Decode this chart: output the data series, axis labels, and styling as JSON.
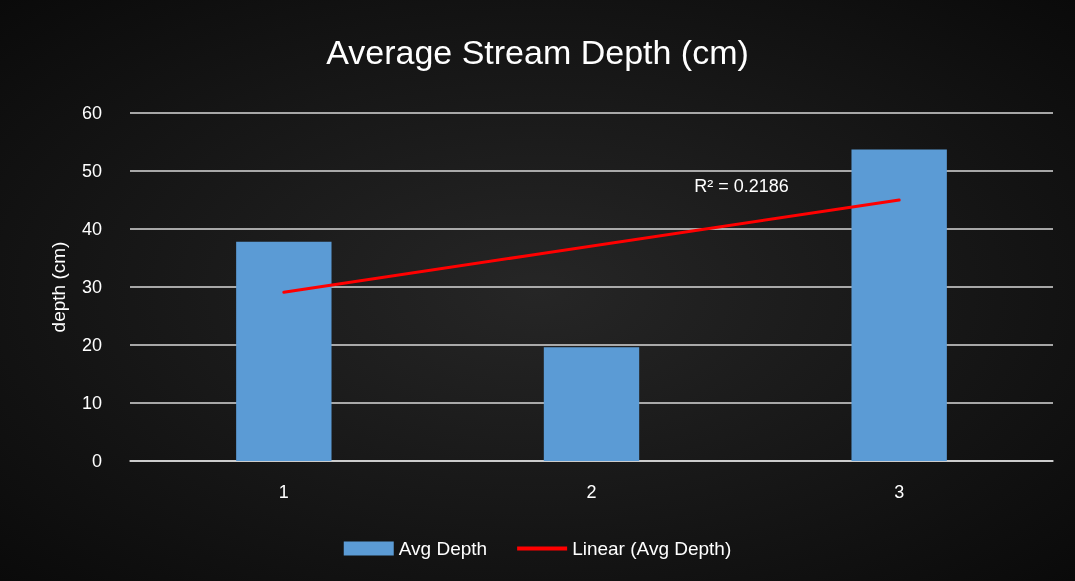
{
  "chart_data": {
    "type": "bar",
    "title": "Average Stream Depth (cm)",
    "ylabel": "depth (cm)",
    "categories": [
      "1",
      "2",
      "3"
    ],
    "series": [
      {
        "name": "Avg Depth",
        "color": "#5b9bd5",
        "values": [
          37.8,
          19.6,
          53.7
        ]
      },
      {
        "name": "Linear (Avg Depth)",
        "type": "line",
        "color": "#ff0000",
        "x": [
          "1",
          "3"
        ],
        "values": [
          29.1,
          45.0
        ]
      }
    ],
    "annotations": [
      "R² = 0.2186"
    ],
    "ylim": [
      0,
      60
    ],
    "yticks": [
      0,
      10,
      20,
      30,
      40,
      50,
      60
    ],
    "grid": "y",
    "legend": "bottom",
    "marker": "none",
    "line_style": "solid"
  }
}
